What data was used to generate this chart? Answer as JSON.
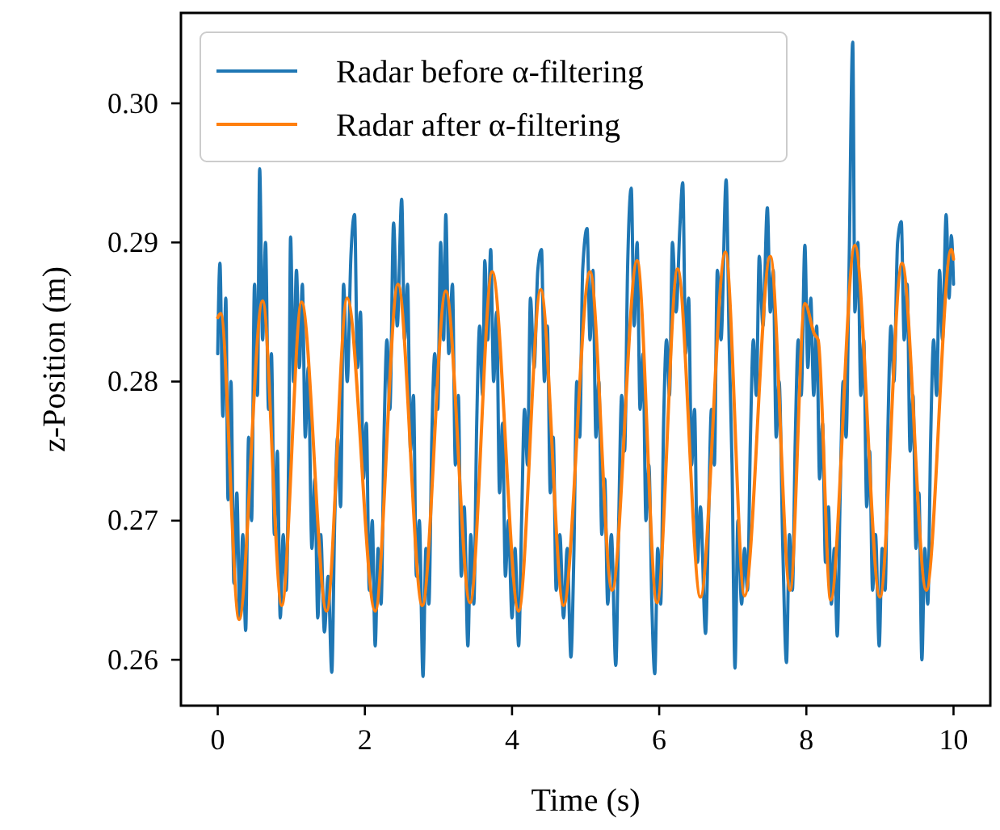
{
  "chart_data": {
    "type": "line",
    "xlabel": "Time (s)",
    "ylabel": "z-Position (m)",
    "xlim": [
      -0.5,
      10.5
    ],
    "xticks": [
      0,
      2,
      4,
      6,
      8,
      10
    ],
    "ylim": [
      0.2567,
      0.3065
    ],
    "yticks": [
      {
        "value": 0.26,
        "label": "0.26"
      },
      {
        "value": 0.27,
        "label": "0.27"
      },
      {
        "value": 0.28,
        "label": "0.28"
      },
      {
        "value": 0.29,
        "label": "0.29"
      },
      {
        "value": 0.3,
        "label": "0.30"
      }
    ],
    "legend": "top left",
    "grid": false,
    "series": [
      {
        "name": "Radar before α-filtering",
        "color": "#1f77b4",
        "x": [
          0,
          0.03,
          0.07,
          0.11,
          0.14,
          0.18,
          0.22,
          0.26,
          0.3,
          0.34,
          0.38,
          0.42,
          0.46,
          0.5,
          0.54,
          0.57,
          0.61,
          0.65,
          0.69,
          0.73,
          0.77,
          0.81,
          0.85,
          0.89,
          0.93,
          0.97,
          0.99,
          1.03,
          1.07,
          1.11,
          1.15,
          1.19,
          1.23,
          1.28,
          1.32,
          1.36,
          1.4,
          1.45,
          1.5,
          1.55,
          1.59,
          1.63,
          1.67,
          1.71,
          1.76,
          1.81,
          1.86,
          1.9,
          1.94,
          1.98,
          2.02,
          2.06,
          2.1,
          2.14,
          2.18,
          2.22,
          2.26,
          2.3,
          2.34,
          2.39,
          2.44,
          2.5,
          2.54,
          2.58,
          2.62,
          2.66,
          2.7,
          2.74,
          2.79,
          2.83,
          2.87,
          2.91,
          2.95,
          2.99,
          3.03,
          3.07,
          3.1,
          3.14,
          3.19,
          3.23,
          3.27,
          3.31,
          3.35,
          3.4,
          3.44,
          3.48,
          3.52,
          3.56,
          3.6,
          3.63,
          3.67,
          3.71,
          3.75,
          3.79,
          3.83,
          3.87,
          3.91,
          3.95,
          4,
          4.04,
          4.09,
          4.13,
          4.17,
          4.21,
          4.25,
          4.3,
          4.35,
          4.4,
          4.44,
          4.48,
          4.52,
          4.56,
          4.6,
          4.65,
          4.7,
          4.75,
          4.8,
          4.84,
          4.88,
          4.92,
          4.96,
          5.02,
          5.06,
          5.1,
          5.14,
          5.18,
          5.22,
          5.26,
          5.3,
          5.35,
          5.41,
          5.45,
          5.49,
          5.53,
          5.57,
          5.62,
          5.66,
          5.7,
          5.74,
          5.78,
          5.82,
          5.86,
          5.9,
          5.94,
          5.98,
          6.02,
          6.06,
          6.1,
          6.14,
          6.18,
          6.23,
          6.28,
          6.32,
          6.36,
          6.4,
          6.44,
          6.48,
          6.52,
          6.56,
          6.63,
          6.67,
          6.71,
          6.75,
          6.79,
          6.84,
          6.91,
          6.95,
          6.99,
          7.03,
          7.07,
          7.12,
          7.16,
          7.2,
          7.24,
          7.28,
          7.32,
          7.36,
          7.41,
          7.47,
          7.51,
          7.55,
          7.59,
          7.63,
          7.68,
          7.73,
          7.77,
          7.81,
          7.85,
          7.89,
          7.93,
          7.98,
          8.02,
          8.06,
          8.1,
          8.14,
          8.18,
          8.22,
          8.26,
          8.3,
          8.34,
          8.38,
          8.42,
          8.46,
          8.5,
          8.54,
          8.58,
          8.63,
          8.66,
          8.7,
          8.74,
          8.78,
          8.82,
          8.86,
          8.9,
          8.94,
          8.99,
          9.03,
          9.07,
          9.11,
          9.15,
          9.19,
          9.24,
          9.29,
          9.33,
          9.37,
          9.41,
          9.45,
          9.49,
          9.53,
          9.57,
          9.61,
          9.65,
          9.69,
          9.73,
          9.77,
          9.81,
          9.85,
          9.9,
          9.94,
          9.97,
          10
        ],
        "values": [
          0.282,
          0.2885,
          0.2775,
          0.286,
          0.2715,
          0.28,
          0.2655,
          0.272,
          0.263,
          0.269,
          0.2621,
          0.276,
          0.27,
          0.287,
          0.279,
          0.2953,
          0.283,
          0.29,
          0.278,
          0.282,
          0.269,
          0.275,
          0.263,
          0.269,
          0.265,
          0.278,
          0.2904,
          0.28,
          0.288,
          0.281,
          0.287,
          0.276,
          0.281,
          0.268,
          0.273,
          0.263,
          0.269,
          0.262,
          0.266,
          0.2591,
          0.27,
          0.276,
          0.271,
          0.287,
          0.28,
          0.289,
          0.292,
          0.281,
          0.285,
          0.273,
          0.277,
          0.265,
          0.27,
          0.261,
          0.268,
          0.264,
          0.276,
          0.283,
          0.278,
          0.2914,
          0.284,
          0.2931,
          0.283,
          0.287,
          0.275,
          0.279,
          0.266,
          0.27,
          0.2588,
          0.268,
          0.264,
          0.276,
          0.282,
          0.278,
          0.29,
          0.283,
          0.292,
          0.282,
          0.287,
          0.274,
          0.279,
          0.266,
          0.271,
          0.261,
          0.269,
          0.264,
          0.277,
          0.284,
          0.279,
          0.2887,
          0.283,
          0.2895,
          0.28,
          0.285,
          0.272,
          0.277,
          0.266,
          0.27,
          0.263,
          0.268,
          0.261,
          0.27,
          0.278,
          0.274,
          0.286,
          0.281,
          0.288,
          0.2895,
          0.28,
          0.284,
          0.272,
          0.276,
          0.265,
          0.269,
          0.263,
          0.268,
          0.2602,
          0.2675,
          0.28,
          0.276,
          0.288,
          0.291,
          0.283,
          0.288,
          0.276,
          0.28,
          0.269,
          0.273,
          0.264,
          0.269,
          0.2596,
          0.27,
          0.279,
          0.275,
          0.288,
          0.2939,
          0.284,
          0.29,
          0.278,
          0.282,
          0.27,
          0.274,
          0.264,
          0.259,
          0.268,
          0.264,
          0.277,
          0.283,
          0.279,
          0.29,
          0.285,
          0.291,
          0.2943,
          0.282,
          0.286,
          0.274,
          0.278,
          0.267,
          0.271,
          0.2619,
          0.27,
          0.278,
          0.274,
          0.288,
          0.283,
          0.2945,
          0.283,
          0.274,
          0.2594,
          0.27,
          0.264,
          0.268,
          0.265,
          0.276,
          0.283,
          0.279,
          0.289,
          0.284,
          0.2925,
          0.285,
          0.288,
          0.276,
          0.28,
          0.268,
          0.2598,
          0.269,
          0.265,
          0.276,
          0.283,
          0.279,
          0.2898,
          0.281,
          0.286,
          0.279,
          0.284,
          0.273,
          0.277,
          0.267,
          0.271,
          0.264,
          0.268,
          0.2617,
          0.272,
          0.28,
          0.276,
          0.288,
          0.3044,
          0.285,
          0.29,
          0.279,
          0.283,
          0.271,
          0.275,
          0.265,
          0.269,
          0.261,
          0.268,
          0.265,
          0.277,
          0.284,
          0.28,
          0.29,
          0.2915,
          0.283,
          0.287,
          0.275,
          0.279,
          0.268,
          0.272,
          0.26,
          0.268,
          0.264,
          0.276,
          0.283,
          0.279,
          0.288,
          0.283,
          0.292,
          0.286,
          0.2905,
          0.287
        ]
      },
      {
        "name": "Radar after α-filtering",
        "color": "#ff7f0e",
        "x": [
          0,
          0.04,
          0.29,
          0.61,
          0.87,
          1.14,
          1.48,
          1.76,
          2.14,
          2.45,
          2.78,
          3.1,
          3.43,
          3.73,
          4.09,
          4.39,
          4.7,
          5.06,
          5.36,
          5.7,
          5.97,
          6.25,
          6.56,
          6.9,
          7.16,
          7.51,
          7.78,
          7.98,
          8.11,
          8.16,
          8.33,
          8.66,
          9,
          9.3,
          9.63,
          9.97,
          10
        ],
        "values": [
          0.2846,
          0.2849,
          0.2629,
          0.2858,
          0.2639,
          0.2857,
          0.2635,
          0.286,
          0.2635,
          0.287,
          0.2639,
          0.2865,
          0.2641,
          0.2879,
          0.2635,
          0.2866,
          0.2639,
          0.2879,
          0.265,
          0.2887,
          0.2641,
          0.2881,
          0.2645,
          0.2893,
          0.2646,
          0.289,
          0.265,
          0.2856,
          0.2834,
          0.283,
          0.2643,
          0.2898,
          0.2645,
          0.2885,
          0.265,
          0.2895,
          0.2888
        ]
      }
    ]
  }
}
